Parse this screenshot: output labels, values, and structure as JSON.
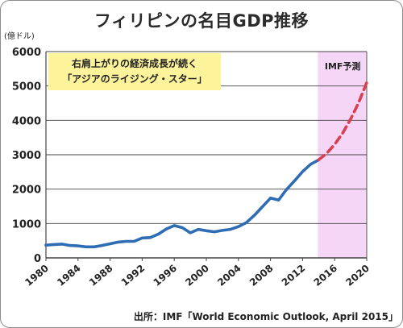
{
  "chart_data": {
    "type": "line",
    "title": "フィリピンの名目GDP推移",
    "ylabel": "(億ドル)",
    "xlabel": "",
    "ylim": [
      0,
      6000
    ],
    "xlim": [
      1980,
      2020
    ],
    "yticks": [
      0,
      1000,
      2000,
      3000,
      4000,
      5000,
      6000
    ],
    "xticks": [
      "1980",
      "1984",
      "1988",
      "1992",
      "1996",
      "2000",
      "2004",
      "2008",
      "2012",
      "2016",
      "2020"
    ],
    "grid": true,
    "annotation_lines": [
      "右肩上がりの経済成長が続く",
      "「アジアのライジング・スター」"
    ],
    "forecast_label": "IMF予測",
    "forecast_range": [
      2014,
      2020
    ],
    "source": "出所：IMF「World Economic Outlook, April 2015」",
    "series": [
      {
        "style": "actual",
        "x": [
          1980,
          1981,
          1982,
          1983,
          1984,
          1985,
          1986,
          1987,
          1988,
          1989,
          1990,
          1991,
          1992,
          1993,
          1994,
          1995,
          1996,
          1997,
          1998,
          1999,
          2000,
          2001,
          2002,
          2003,
          2004,
          2005,
          2006,
          2007,
          2008,
          2009,
          2010,
          2011,
          2012,
          2013,
          2014
        ],
        "y": [
          370,
          390,
          400,
          360,
          350,
          320,
          320,
          360,
          410,
          460,
          480,
          480,
          580,
          590,
          690,
          840,
          940,
          880,
          730,
          830,
          790,
          760,
          800,
          830,
          910,
          1030,
          1240,
          1490,
          1740,
          1680,
          1990,
          2240,
          2510,
          2720,
          2850
        ]
      },
      {
        "style": "forecast",
        "x": [
          2014,
          2015,
          2016,
          2017,
          2018,
          2019,
          2020
        ],
        "y": [
          2850,
          3040,
          3300,
          3630,
          4040,
          4520,
          5100
        ]
      }
    ],
    "colors": {
      "line": "#2e6db4",
      "forecast_line": "#d9404f",
      "forecast_bg": "#f6d6f6",
      "grid": "#444444"
    }
  }
}
